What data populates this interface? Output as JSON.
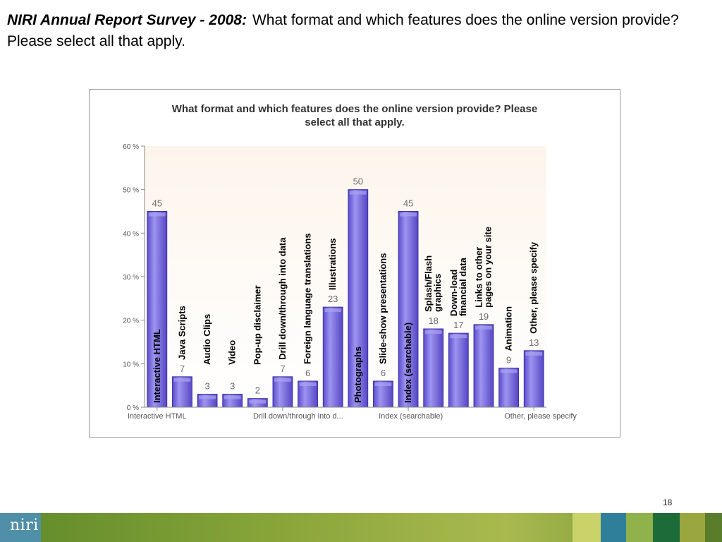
{
  "slide": {
    "title_lead": "NIRI Annual Report Survey - 2008:",
    "title_rest": "What format and which features does the online version provide? Please select all that apply.",
    "page_number": "18",
    "logo": "niri"
  },
  "colors": {
    "bar_fill": "#7a6cdf",
    "bar_edge": "#3d32a8",
    "bar_highlight": "#aaa3f0",
    "value_label": "#6b6b6b",
    "plot_bg_top": "#fdf6ee",
    "plot_bg_bottom": "#ffffff"
  },
  "chart_data": {
    "type": "bar",
    "title_line1": "What format and which features does the online version provide? Please",
    "title_line2": "select all that apply.",
    "categories": [
      "Interactive HTML",
      "Java Scripts",
      "Audio Clips",
      "Video",
      "Pop-up disclaimer",
      "Drill down/through into data",
      "Foreign language translations",
      "Illustrations",
      "Photographs",
      "Slide-show presentations",
      "Index (searchable)",
      "Splash/Flash graphics",
      "Down-load financial data",
      "Links to other pages on your site",
      "Animation",
      "Other, please specify"
    ],
    "values": [
      45,
      7,
      3,
      3,
      2,
      7,
      6,
      23,
      50,
      6,
      45,
      18,
      17,
      19,
      9,
      13
    ],
    "value_labels": [
      "45",
      "7",
      "3",
      "3",
      "2",
      "7",
      "6",
      "23",
      "50",
      "6",
      "45",
      "18",
      "17",
      "19",
      "9",
      "13"
    ],
    "ylim": [
      0,
      60
    ],
    "y_ticks": [
      0,
      10,
      20,
      30,
      40,
      50,
      60
    ],
    "y_tick_labels": [
      "0 %",
      "10 %",
      "20 %",
      "30 %",
      "40 %",
      "50 %",
      "60 %"
    ],
    "x_tick_labels": [
      {
        "index": 0,
        "label": "Interactive HTML"
      },
      {
        "index": 5,
        "label": "Drill down/through into d..."
      },
      {
        "index": 10,
        "label": "Index (searchable)"
      },
      {
        "index": 15,
        "label": "Other, please specify"
      }
    ],
    "in_chart_labels": [
      {
        "index": 0,
        "lines": [
          "Interactive HTML"
        ]
      },
      {
        "index": 1,
        "lines": [
          "Java Scripts"
        ]
      },
      {
        "index": 2,
        "lines": [
          "Audio Clips"
        ]
      },
      {
        "index": 3,
        "lines": [
          "Video"
        ]
      },
      {
        "index": 4,
        "lines": [
          "Pop-up disclaimer"
        ]
      },
      {
        "index": 5,
        "lines": [
          "Drill down/through into data"
        ]
      },
      {
        "index": 6,
        "lines": [
          "Foreign language translations"
        ]
      },
      {
        "index": 7,
        "lines": [
          "Illustrations"
        ]
      },
      {
        "index": 8,
        "lines": [
          "Photographs"
        ]
      },
      {
        "index": 9,
        "lines": [
          "Slide-show presentations"
        ]
      },
      {
        "index": 10,
        "lines": [
          "Index (searchable)"
        ]
      },
      {
        "index": 11,
        "lines": [
          "Splash/Flash",
          "graphics"
        ]
      },
      {
        "index": 12,
        "lines": [
          "Down-load",
          "financial data"
        ]
      },
      {
        "index": 13,
        "lines": [
          "Links to other",
          "pages on your site"
        ]
      },
      {
        "index": 14,
        "lines": [
          "Animation"
        ]
      },
      {
        "index": 15,
        "lines": [
          "Other, please specify"
        ]
      }
    ],
    "grid": false,
    "legend": "none"
  }
}
